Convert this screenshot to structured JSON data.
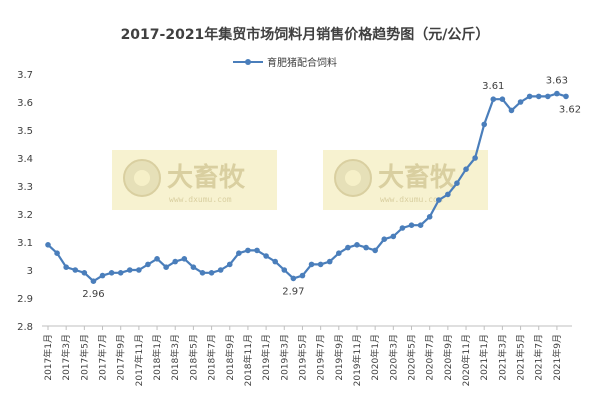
{
  "chart_data": {
    "type": "line",
    "title": "2017-2021年集贸市场饲料月销售价格趋势图（元/公斤）",
    "xlabel": "",
    "ylabel": "",
    "ylim": [
      2.8,
      3.7
    ],
    "yticks": [
      "2.8",
      "2.9",
      "3",
      "3.1",
      "3.2",
      "3.3",
      "3.4",
      "3.5",
      "3.6",
      "3.7"
    ],
    "grid": false,
    "legend_position": "top",
    "x_tick_labels": [
      "2017年1月",
      "2017年3月",
      "2017年5月",
      "2017年7月",
      "2017年9月",
      "2017年11月",
      "2018年1月",
      "2018年3月",
      "2018年5月",
      "2018年7月",
      "2018年9月",
      "2018年11月",
      "2019年1月",
      "2019年3月",
      "2019年5月",
      "2019年7月",
      "2019年9月",
      "2019年11月",
      "2020年1月",
      "2020年3月",
      "2020年5月",
      "2020年7月",
      "2020年9月",
      "2020年11月",
      "2021年1月",
      "2021年3月",
      "2021年5月",
      "2021年7月",
      "2021年9月"
    ],
    "series": [
      {
        "name": "育肥猪配合饲料",
        "color": "#4a7ebb",
        "values": [
          3.09,
          3.06,
          3.01,
          3.0,
          2.99,
          2.96,
          2.98,
          2.99,
          2.99,
          3.0,
          3.0,
          3.02,
          3.04,
          3.01,
          3.03,
          3.04,
          3.01,
          2.99,
          2.99,
          3.0,
          3.02,
          3.06,
          3.07,
          3.07,
          3.05,
          3.03,
          3.0,
          2.97,
          2.98,
          3.02,
          3.02,
          3.03,
          3.06,
          3.08,
          3.09,
          3.08,
          3.07,
          3.11,
          3.12,
          3.15,
          3.16,
          3.16,
          3.19,
          3.25,
          3.27,
          3.31,
          3.36,
          3.4,
          3.52,
          3.61,
          3.61,
          3.57,
          3.6,
          3.62,
          3.62,
          3.62,
          3.63,
          3.62
        ]
      }
    ],
    "annotations": [
      {
        "index": 5,
        "text": "2.96",
        "position": "below"
      },
      {
        "index": 27,
        "text": "2.97",
        "position": "below"
      },
      {
        "index": 49,
        "text": "3.61",
        "position": "above"
      },
      {
        "index": 56,
        "text": "3.63",
        "position": "above"
      },
      {
        "index": 57,
        "text": "3.62",
        "position": "below-right"
      }
    ]
  },
  "watermark": {
    "text": "大畜牧",
    "url": "www.dxumu.com"
  }
}
